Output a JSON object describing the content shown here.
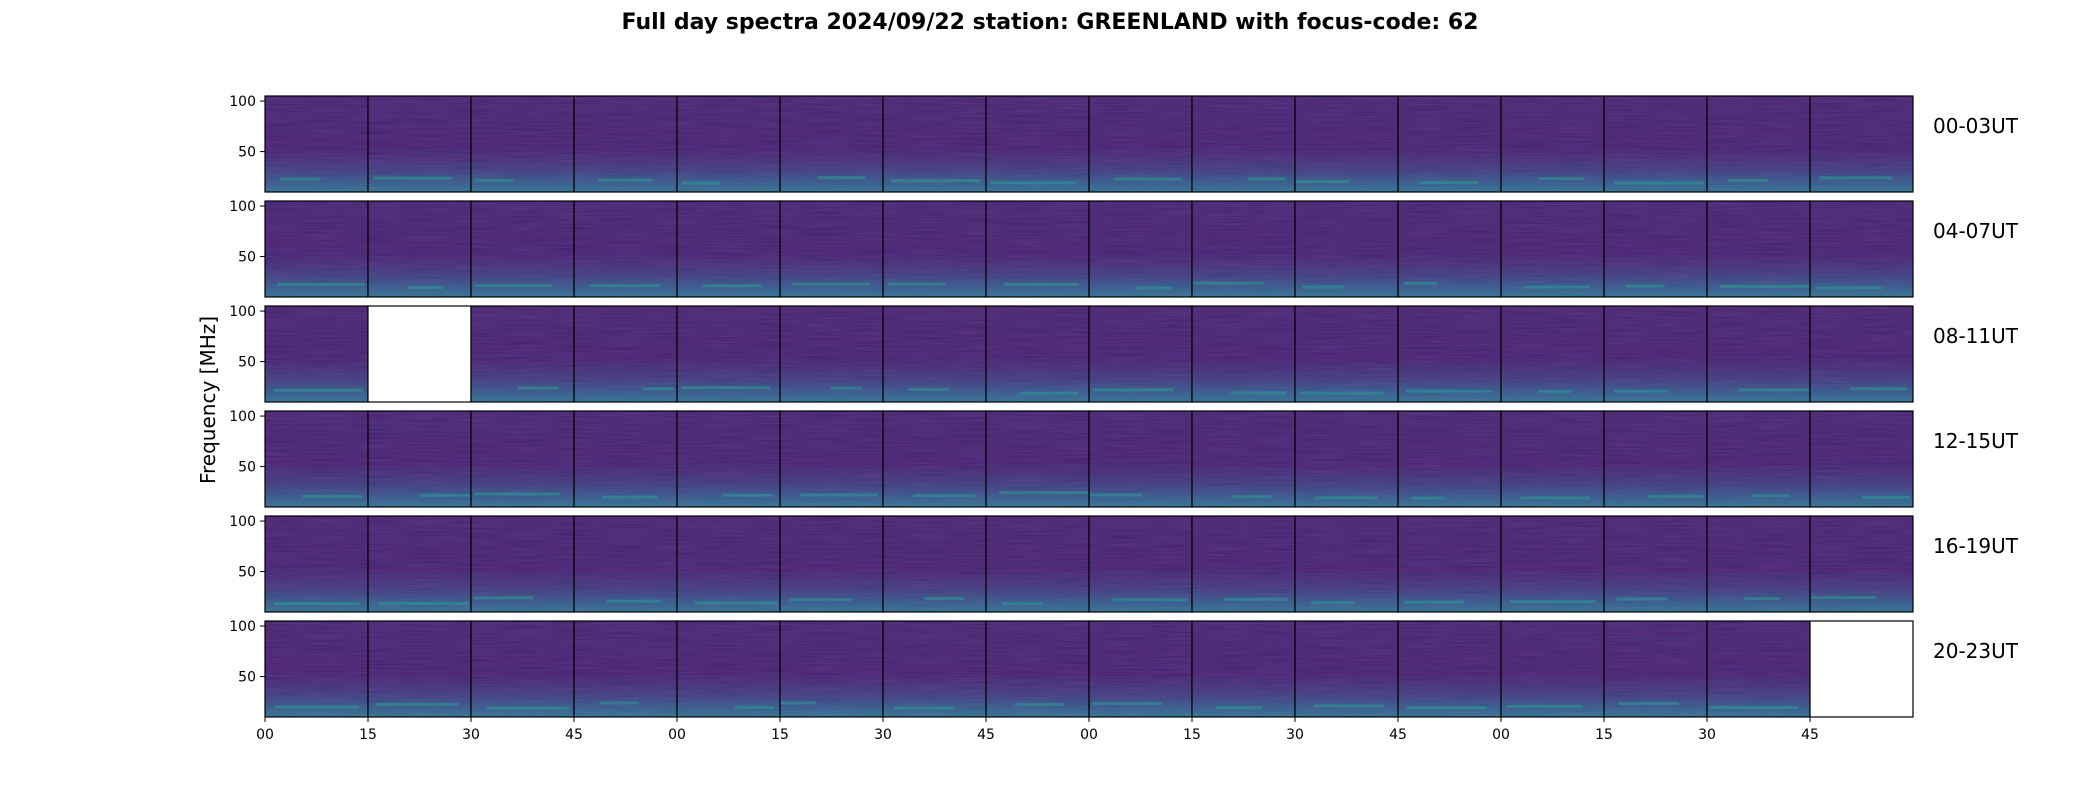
{
  "chart_data": {
    "type": "heatmap",
    "title": "Full day spectra 2024/09/22 station: GREENLAND with focus-code: 62",
    "xlabel": "",
    "ylabel": "Frequency [MHz]",
    "ylim": [
      10,
      105
    ],
    "yticks": [
      "100",
      "50"
    ],
    "xticks": [
      "00",
      "15",
      "30",
      "45",
      "00",
      "15",
      "30",
      "45",
      "00",
      "15",
      "30",
      "45",
      "00",
      "15",
      "30",
      "45"
    ],
    "colormap": "viridis",
    "rows": [
      {
        "label": "00-03UT",
        "missing_panels": []
      },
      {
        "label": "04-07UT",
        "missing_panels": []
      },
      {
        "label": "08-11UT",
        "missing_panels": [
          1
        ]
      },
      {
        "label": "12-15UT",
        "missing_panels": []
      },
      {
        "label": "16-19UT",
        "missing_panels": []
      },
      {
        "label": "20-23UT",
        "missing_panels": [
          15
        ]
      }
    ],
    "panels_per_row": 16,
    "minutes_per_panel": 15
  }
}
